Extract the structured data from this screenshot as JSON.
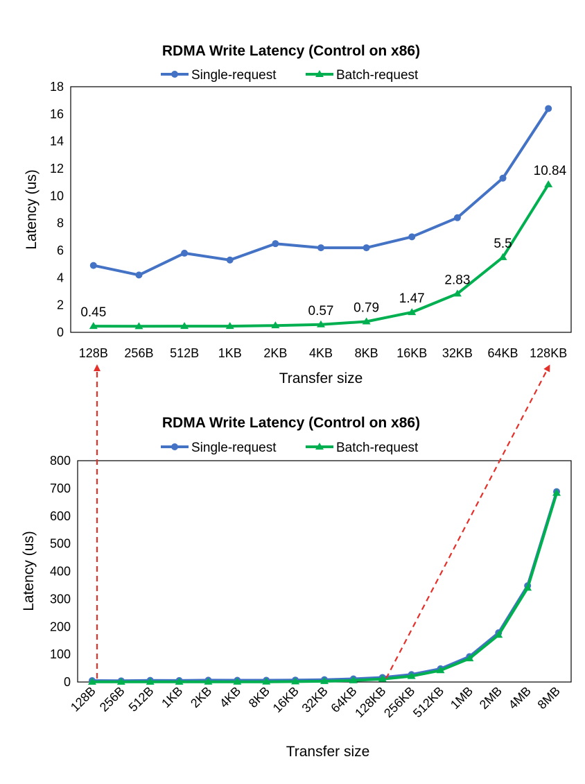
{
  "colors": {
    "single": "#4472C4",
    "batch": "#00B050",
    "arrow": "#E5302A"
  },
  "chart_data": [
    {
      "type": "line",
      "title": "RDMA Write Latency (Control on x86)",
      "xlabel": "Transfer size",
      "ylabel": "Latency (us)",
      "ylim": [
        0,
        18
      ],
      "yticks": [
        "0",
        "2",
        "4",
        "6",
        "8",
        "10",
        "12",
        "14",
        "16",
        "18"
      ],
      "categories": [
        "128B",
        "256B",
        "512B",
        "1KB",
        "2KB",
        "4KB",
        "8KB",
        "16KB",
        "32KB",
        "64KB",
        "128KB"
      ],
      "legend": "top",
      "series": [
        {
          "name": "Single-request",
          "marker": "circle",
          "values": [
            4.9,
            4.2,
            5.8,
            5.3,
            6.5,
            6.2,
            6.2,
            7.0,
            8.4,
            11.3,
            16.4
          ]
        },
        {
          "name": "Batch-request",
          "marker": "triangle",
          "values": [
            0.45,
            0.44,
            0.45,
            0.45,
            0.5,
            0.57,
            0.79,
            1.47,
            2.83,
            5.5,
            10.84
          ]
        }
      ],
      "data_labels": [
        {
          "series": 1,
          "index": 0,
          "text": "0.45"
        },
        {
          "series": 1,
          "index": 5,
          "text": "0.57"
        },
        {
          "series": 1,
          "index": 6,
          "text": "0.79"
        },
        {
          "series": 1,
          "index": 7,
          "text": "1.47"
        },
        {
          "series": 1,
          "index": 8,
          "text": "2.83"
        },
        {
          "series": 1,
          "index": 9,
          "text": "5.5"
        },
        {
          "series": 1,
          "index": 10,
          "text": "10.84"
        }
      ]
    },
    {
      "type": "line",
      "title": "RDMA Write Latency (Control on x86)",
      "xlabel": "Transfer size",
      "ylabel": "Latency (us)",
      "ylim": [
        0,
        800
      ],
      "yticks": [
        "0",
        "100",
        "200",
        "300",
        "400",
        "500",
        "600",
        "700",
        "800"
      ],
      "categories": [
        "128B",
        "256B",
        "512B",
        "1KB",
        "2KB",
        "4KB",
        "8KB",
        "16KB",
        "32KB",
        "64KB",
        "128KB",
        "256KB",
        "512KB",
        "1MB",
        "2MB",
        "4MB",
        "8MB"
      ],
      "legend": "top",
      "series": [
        {
          "name": "Single-request",
          "marker": "circle",
          "values": [
            4.9,
            4.2,
            5.8,
            5.3,
            6.5,
            6.2,
            6.2,
            7.0,
            8.4,
            11.3,
            16.4,
            27,
            48,
            92,
            178,
            348,
            688
          ]
        },
        {
          "name": "Batch-request",
          "marker": "triangle",
          "values": [
            0.45,
            0.44,
            0.45,
            0.45,
            0.5,
            0.57,
            0.79,
            1.47,
            2.83,
            5.5,
            10.84,
            21,
            42,
            85,
            170,
            340,
            683
          ]
        }
      ],
      "data_labels": []
    }
  ]
}
